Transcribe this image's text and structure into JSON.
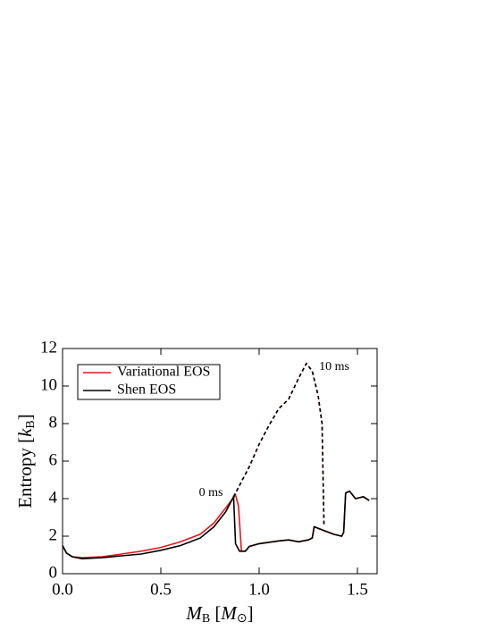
{
  "chart_data": {
    "type": "line",
    "x_label": [
      "M",
      "B",
      " [",
      "M",
      "⊙",
      "]"
    ],
    "y_label": [
      "Entropy [",
      "k",
      "B",
      "]"
    ],
    "xlim": [
      0,
      1.6
    ],
    "ylim": [
      0,
      12
    ],
    "xticks": [
      {
        "value": 0,
        "label": "0.0"
      },
      0.5,
      {
        "value": 1,
        "label": "1.0"
      },
      1.5
    ],
    "yticks": [
      0,
      2,
      4,
      6,
      8,
      10,
      12
    ],
    "annotations": [
      "0 ms",
      "10 ms"
    ],
    "series": [
      {
        "name": "Variational EOS",
        "color": "#e8161c",
        "profiles": [
          {
            "dashed": false,
            "x": [
              0,
              0.02,
              0.05,
              0.1,
              0.2,
              0.3,
              0.4,
              0.5,
              0.6,
              0.7,
              0.77,
              0.83,
              0.88,
              0.895,
              0.91,
              0.93,
              0.95,
              1.0,
              1.1,
              1.15,
              1.2,
              1.25,
              1.27,
              1.28,
              1.33,
              1.38,
              1.42,
              1.43,
              1.44,
              1.46,
              1.49,
              1.53,
              1.56
            ],
            "values": [
              1.5,
              1.1,
              0.9,
              0.85,
              0.9,
              1.05,
              1.2,
              1.4,
              1.7,
              2.1,
              2.7,
              3.5,
              4.2,
              3.6,
              1.2,
              1.2,
              1.45,
              1.6,
              1.75,
              1.8,
              1.7,
              1.8,
              1.9,
              2.5,
              2.3,
              2.1,
              2.0,
              2.2,
              4.3,
              4.4,
              4.0,
              4.1,
              3.9
            ]
          },
          {
            "dashed": true,
            "x": [
              0.87,
              0.9,
              0.95,
              1.0,
              1.05,
              1.1,
              1.15,
              1.2,
              1.24,
              1.27,
              1.3,
              1.32,
              1.33
            ],
            "values": [
              4.1,
              4.7,
              5.7,
              6.9,
              7.9,
              8.8,
              9.3,
              10.4,
              11.2,
              10.8,
              9.5,
              8.0,
              2.5
            ]
          }
        ]
      },
      {
        "name": "Shen EOS",
        "color": "#000000",
        "profiles": [
          {
            "dashed": false,
            "x": [
              0,
              0.02,
              0.05,
              0.1,
              0.2,
              0.3,
              0.4,
              0.5,
              0.6,
              0.7,
              0.77,
              0.83,
              0.87,
              0.88,
              0.9,
              0.93,
              0.95,
              1.0,
              1.1,
              1.15,
              1.2,
              1.25,
              1.27,
              1.28,
              1.33,
              1.38,
              1.42,
              1.43,
              1.44,
              1.46,
              1.49,
              1.53,
              1.56
            ],
            "values": [
              1.5,
              1.1,
              0.9,
              0.8,
              0.85,
              0.95,
              1.05,
              1.25,
              1.5,
              1.9,
              2.5,
              3.3,
              4.1,
              1.6,
              1.2,
              1.2,
              1.45,
              1.6,
              1.75,
              1.8,
              1.7,
              1.8,
              1.9,
              2.5,
              2.3,
              2.1,
              2.0,
              2.2,
              4.3,
              4.4,
              4.0,
              4.1,
              3.9
            ]
          },
          {
            "dashed": true,
            "x": [
              0.87,
              0.9,
              0.95,
              1.0,
              1.05,
              1.1,
              1.15,
              1.2,
              1.24,
              1.27,
              1.3,
              1.32,
              1.33
            ],
            "values": [
              4.1,
              4.7,
              5.7,
              6.9,
              7.9,
              8.8,
              9.3,
              10.4,
              11.2,
              10.8,
              9.5,
              8.0,
              2.5
            ]
          }
        ]
      }
    ]
  }
}
